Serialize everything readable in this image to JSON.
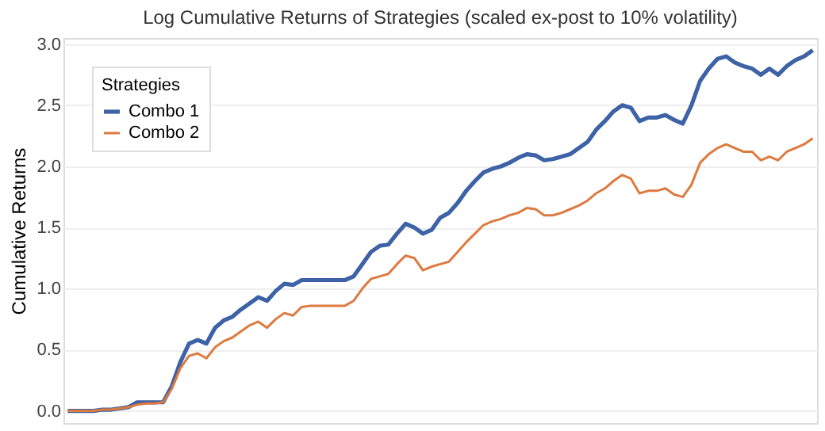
{
  "chart_data": {
    "type": "line",
    "title": "Log Cumulative Returns of Strategies (scaled ex-post to 10% volatility)",
    "ylabel": "Cumulative Returns",
    "legend_title": "Strategies",
    "legend": "top left",
    "grid": "y",
    "tick_labels": "y",
    "line_style": "solid",
    "categories": [
      null,
      null,
      null,
      null,
      null,
      null,
      null,
      null,
      null,
      null,
      null,
      null,
      null,
      null,
      null,
      null,
      null,
      null,
      null,
      null,
      null,
      null,
      null,
      null,
      null,
      null,
      null,
      null,
      null,
      null,
      null,
      null,
      null,
      null,
      null,
      null,
      null,
      null,
      null,
      null,
      null,
      null,
      null,
      null,
      null,
      null,
      null,
      null,
      null,
      null,
      null,
      null,
      null,
      null,
      null,
      null,
      null,
      null,
      null,
      null,
      null,
      null,
      null,
      null,
      null,
      null,
      null,
      null,
      null,
      null,
      null,
      null,
      null,
      null,
      null,
      null,
      null,
      null,
      null,
      null,
      null,
      null,
      null,
      null,
      null,
      null,
      null
    ],
    "ylim": [
      -0.1,
      3.05
    ],
    "yticks": [
      {
        "value": 0,
        "label": "0.0"
      },
      {
        "value": 0.5,
        "label": "0.5"
      },
      {
        "value": 1,
        "label": "1.0"
      },
      {
        "value": 1.5,
        "label": "1.5"
      },
      {
        "value": 2,
        "label": "2.0"
      },
      {
        "value": 2.5,
        "label": "2.5"
      },
      {
        "value": 3,
        "label": "3.0"
      }
    ],
    "series": [
      {
        "name": "Combo 1",
        "color": "#3d62a5",
        "values": [
          0,
          0,
          0,
          0,
          0.01,
          0.01,
          0.02,
          0.03,
          0.07,
          0.07,
          0.07,
          0.07,
          0.2,
          0.4,
          0.55,
          0.58,
          0.55,
          0.68,
          0.74,
          0.77,
          0.83,
          0.88,
          0.93,
          0.9,
          0.98,
          1.04,
          1.03,
          1.07,
          1.07,
          1.07,
          1.07,
          1.07,
          1.07,
          1.1,
          1.2,
          1.3,
          1.35,
          1.36,
          1.45,
          1.53,
          1.5,
          1.45,
          1.48,
          1.58,
          1.62,
          1.7,
          1.8,
          1.88,
          1.95,
          1.98,
          2.0,
          2.03,
          2.07,
          2.1,
          2.09,
          2.05,
          2.06,
          2.08,
          2.1,
          2.15,
          2.2,
          2.3,
          2.37,
          2.45,
          2.5,
          2.48,
          2.37,
          2.4,
          2.4,
          2.42,
          2.38,
          2.35,
          2.5,
          2.7,
          2.8,
          2.88,
          2.9,
          2.85,
          2.82,
          2.8,
          2.75,
          2.8,
          2.75,
          2.82,
          2.87,
          2.9,
          2.95
        ]
      },
      {
        "name": "Combo 2",
        "color": "#dd7a3f",
        "values": [
          0,
          0,
          0,
          0,
          0.01,
          0.01,
          0.02,
          0.03,
          0.05,
          0.06,
          0.06,
          0.07,
          0.18,
          0.35,
          0.45,
          0.47,
          0.43,
          0.52,
          0.57,
          0.6,
          0.65,
          0.7,
          0.73,
          0.68,
          0.75,
          0.8,
          0.78,
          0.85,
          0.86,
          0.86,
          0.86,
          0.86,
          0.86,
          0.9,
          1.0,
          1.08,
          1.1,
          1.12,
          1.2,
          1.27,
          1.25,
          1.15,
          1.18,
          1.2,
          1.22,
          1.3,
          1.38,
          1.45,
          1.52,
          1.55,
          1.57,
          1.6,
          1.62,
          1.66,
          1.65,
          1.6,
          1.6,
          1.62,
          1.65,
          1.68,
          1.72,
          1.78,
          1.82,
          1.88,
          1.93,
          1.9,
          1.78,
          1.8,
          1.8,
          1.82,
          1.77,
          1.75,
          1.85,
          2.03,
          2.1,
          2.15,
          2.18,
          2.15,
          2.12,
          2.12,
          2.05,
          2.08,
          2.05,
          2.12,
          2.15,
          2.18,
          2.23
        ]
      }
    ]
  }
}
